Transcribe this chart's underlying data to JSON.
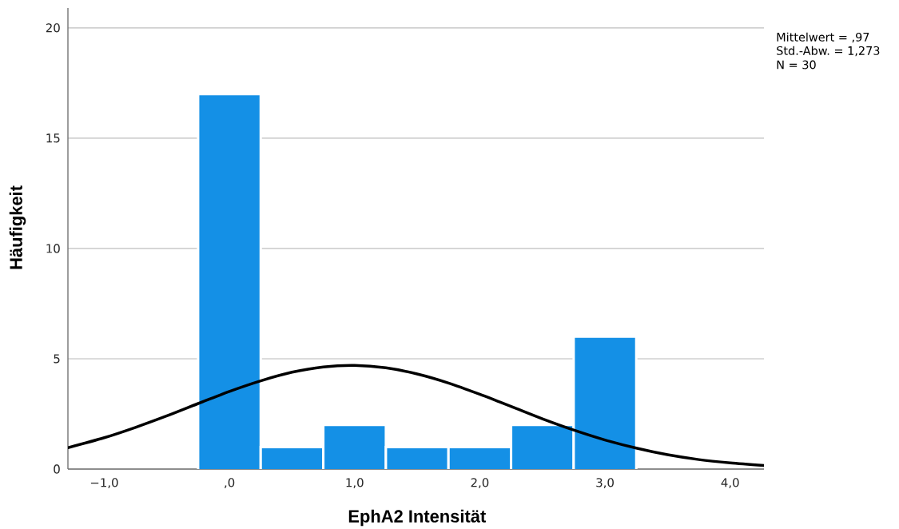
{
  "chart_data": {
    "type": "histogram",
    "xlabel": "EphA2 Intensität",
    "ylabel": "Häufigkeit",
    "annotations": [
      "Mittelwert = ,97",
      "Std.-Abw. = 1,273",
      "N = 30"
    ],
    "series": [
      {
        "bins": [
          -0.25,
          0.25,
          0.75,
          1.25,
          1.75,
          2.25,
          2.75,
          3.25
        ],
        "values": [
          17,
          1,
          2,
          1,
          1,
          2,
          6
        ],
        "color": "#1490e6"
      },
      {
        "type": "line",
        "color": "#000000",
        "x": [
          -1.29,
          -1.0,
          -0.75,
          -0.5,
          -0.25,
          0,
          0.25,
          0.5,
          0.75,
          1.0,
          1.25,
          1.5,
          1.75,
          2.0,
          2.25,
          2.5,
          2.75,
          3.0,
          3.25,
          3.5,
          3.75,
          4.0,
          4.27
        ],
        "values": [
          0.97,
          1.42,
          1.89,
          2.41,
          2.97,
          3.52,
          4.0,
          4.39,
          4.63,
          4.7,
          4.59,
          4.31,
          3.9,
          3.39,
          2.84,
          2.28,
          1.77,
          1.32,
          0.95,
          0.65,
          0.43,
          0.28,
          0.16
        ]
      }
    ],
    "xlim": [
      -1.29,
      4.27
    ],
    "ylim": [
      0,
      20.9
    ],
    "xticks": [
      {
        "value": -1,
        "label": "−1,0"
      },
      {
        "value": 0,
        "label": ",0"
      },
      {
        "value": 1,
        "label": "1,0"
      },
      {
        "value": 2,
        "label": "2,0"
      },
      {
        "value": 3,
        "label": "3,0"
      },
      {
        "value": 4,
        "label": "4,0"
      }
    ],
    "yticks": [
      0,
      5,
      10,
      15,
      20
    ],
    "grid": "y"
  }
}
